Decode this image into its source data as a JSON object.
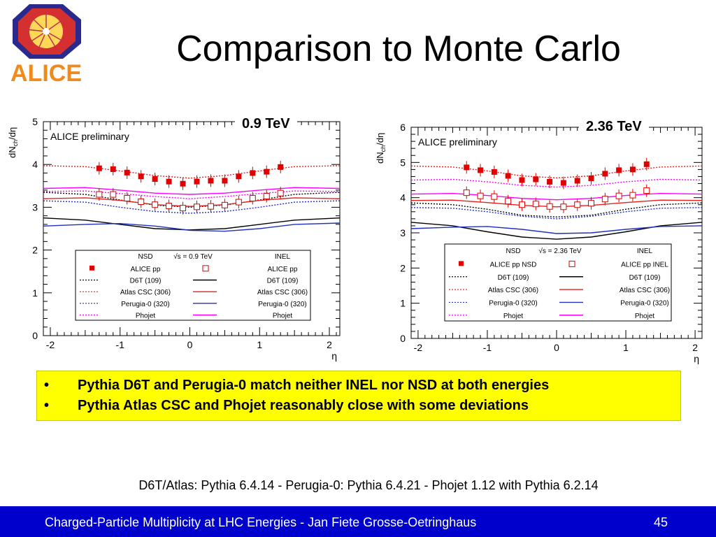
{
  "slide": {
    "title": "Comparison to Monte Carlo",
    "logo_text": "ALICE",
    "bullets": [
      "Pythia D6T and Perugia-0 match neither INEL nor NSD at both energies",
      "Pythia Atlas CSC and Phojet reasonably close with some deviations"
    ],
    "bullet_symbol": "•",
    "footnote": "D6T/Atlas: Pythia 6.4.14 - Perugia-0: Pythia 6.4.21 - Phojet 1.12 with Pythia 6.2.14",
    "footer": "Charged-Particle Multiplicity at LHC Energies - Jan Fiete Grosse-Oetringhaus",
    "page_number": "45",
    "colors": {
      "footer_bg": "#0000cc",
      "highlight": "#ffff00",
      "alice_red": "#ee0000",
      "logo_orange": "#f08a1c"
    }
  },
  "chart_data": [
    {
      "type": "scatter",
      "energy_label": "0.9 TeV",
      "annotation": "ALICE preliminary",
      "xlabel": "η",
      "ylabel": "dN_ch/dη",
      "xlim": [
        -2.1,
        2.15
      ],
      "ylim": [
        0,
        5
      ],
      "xticks": [
        -2,
        -1,
        0,
        1,
        2
      ],
      "yticks": [
        0,
        1,
        2,
        3,
        4,
        5
      ],
      "legend": {
        "header": [
          "NSD",
          "√s = 0.9 TeV",
          "INEL"
        ],
        "rows": [
          {
            "left": "ALICE pp",
            "right": "ALICE pp",
            "series": "data"
          },
          {
            "left": "D6T (109)",
            "right": "D6T (109)",
            "series": "D6T"
          },
          {
            "left": "Atlas CSC (306)",
            "right": "Atlas CSC (306)",
            "series": "Atlas"
          },
          {
            "left": "Perugia-0 (320)",
            "right": "Perugia-0 (320)",
            "series": "Perugia"
          },
          {
            "left": "Phojet",
            "right": "Phojet",
            "series": "Phojet"
          }
        ]
      },
      "data_nsd": {
        "x": [
          -1.3,
          -1.1,
          -0.9,
          -0.7,
          -0.5,
          -0.3,
          -0.1,
          0.1,
          0.3,
          0.5,
          0.7,
          0.9,
          1.1,
          1.3
        ],
        "y": [
          3.91,
          3.89,
          3.81,
          3.72,
          3.66,
          3.6,
          3.55,
          3.6,
          3.62,
          3.62,
          3.72,
          3.8,
          3.83,
          3.94
        ]
      },
      "data_inel": {
        "x": [
          -1.3,
          -1.1,
          -0.9,
          -0.7,
          -0.5,
          -0.3,
          -0.1,
          0.1,
          0.3,
          0.5,
          0.7,
          0.9,
          1.1,
          1.3
        ],
        "y": [
          3.3,
          3.3,
          3.21,
          3.13,
          3.06,
          3.03,
          2.98,
          3.01,
          3.02,
          3.05,
          3.12,
          3.21,
          3.26,
          3.33
        ]
      },
      "curves": {
        "x": [
          -2.1,
          -1.5,
          -1.0,
          -0.5,
          0,
          0.5,
          1.0,
          1.5,
          2.15
        ],
        "series": [
          {
            "id": "nsd_atlas",
            "color": "#e8201b",
            "dash": "dot",
            "y": [
              3.97,
              3.95,
              3.85,
              3.74,
              3.68,
              3.74,
              3.85,
              3.95,
              3.97
            ]
          },
          {
            "id": "inel_phojet",
            "color": "#ff00ff",
            "dash": "solid",
            "y": [
              3.44,
              3.46,
              3.4,
              3.33,
              3.3,
              3.33,
              3.4,
              3.46,
              3.44
            ]
          },
          {
            "id": "nsd_phojet",
            "color": "#ff00ff",
            "dash": "dot",
            "y": [
              3.37,
              3.38,
              3.32,
              3.25,
              3.2,
              3.25,
              3.32,
              3.38,
              3.37
            ]
          },
          {
            "id": "nsd_d6t",
            "color": "#000000",
            "dash": "dot",
            "y": [
              3.35,
              3.3,
              3.17,
              3.05,
              3.0,
              3.05,
              3.17,
              3.3,
              3.35
            ]
          },
          {
            "id": "inel_atlas",
            "color": "#e8201b",
            "dash": "solid",
            "y": [
              3.2,
              3.22,
              3.16,
              3.06,
              3.02,
              3.06,
              3.16,
              3.22,
              3.2
            ]
          },
          {
            "id": "nsd_perugia",
            "color": "#2030c0",
            "dash": "dot",
            "y": [
              3.15,
              3.12,
              3.0,
              2.9,
              2.86,
              2.9,
              3.0,
              3.12,
              3.15
            ]
          },
          {
            "id": "inel_d6t",
            "color": "#000000",
            "dash": "solid",
            "y": [
              2.75,
              2.7,
              2.6,
              2.5,
              2.47,
              2.5,
              2.6,
              2.7,
              2.75
            ]
          },
          {
            "id": "inel_perugia",
            "color": "#2030c0",
            "dash": "solid",
            "y": [
              2.56,
              2.6,
              2.62,
              2.56,
              2.46,
              2.44,
              2.5,
              2.6,
              2.63
            ]
          }
        ]
      }
    },
    {
      "type": "scatter",
      "energy_label": "2.36 TeV",
      "annotation": "ALICE preliminary",
      "xlabel": "η",
      "ylabel": "dN_ch/dη",
      "xlim": [
        -2.1,
        2.1
      ],
      "ylim": [
        0,
        6
      ],
      "xticks": [
        -2,
        -1,
        0,
        1,
        2
      ],
      "yticks": [
        0,
        1,
        2,
        3,
        4,
        5,
        6
      ],
      "legend": {
        "header": [
          "NSD",
          "√s = 2.36 TeV",
          "INEL"
        ],
        "rows": [
          {
            "left": "ALICE pp NSD",
            "right": "ALICE pp INEL",
            "series": "data"
          },
          {
            "left": "D6T (109)",
            "right": "D6T (109)",
            "series": "D6T"
          },
          {
            "left": "Atlas CSC (306)",
            "right": "Atlas CSC (306)",
            "series": "Atlas"
          },
          {
            "left": "Perugia-0 (320)",
            "right": "Perugia-0 (320)",
            "series": "Perugia"
          },
          {
            "left": "Phojet",
            "right": "Phojet",
            "series": "Phojet"
          }
        ]
      },
      "data_nsd": {
        "x": [
          -1.3,
          -1.1,
          -0.9,
          -0.7,
          -0.5,
          -0.3,
          -0.1,
          0.1,
          0.3,
          0.5,
          0.7,
          0.9,
          1.1,
          1.3
        ],
        "y": [
          4.86,
          4.78,
          4.73,
          4.62,
          4.5,
          4.52,
          4.45,
          4.42,
          4.48,
          4.55,
          4.68,
          4.78,
          4.8,
          4.95
        ]
      },
      "data_inel": {
        "x": [
          -1.3,
          -1.1,
          -0.9,
          -0.7,
          -0.5,
          -0.3,
          -0.1,
          0.1,
          0.3,
          0.5,
          0.7,
          0.9,
          1.1,
          1.3
        ],
        "y": [
          4.14,
          4.05,
          4.03,
          3.9,
          3.8,
          3.82,
          3.75,
          3.74,
          3.8,
          3.84,
          3.96,
          4.05,
          4.07,
          4.2
        ]
      },
      "curves": {
        "x": [
          -2.1,
          -1.5,
          -1.0,
          -0.5,
          0,
          0.5,
          1.0,
          1.5,
          2.1
        ],
        "series": [
          {
            "id": "nsd_atlas",
            "color": "#e8201b",
            "dash": "dot",
            "y": [
              4.9,
              4.87,
              4.76,
              4.62,
              4.56,
              4.62,
              4.76,
              4.87,
              4.9
            ]
          },
          {
            "id": "nsd_phojet",
            "color": "#ff00ff",
            "dash": "dot",
            "y": [
              4.5,
              4.52,
              4.45,
              4.35,
              4.3,
              4.35,
              4.45,
              4.52,
              4.5
            ]
          },
          {
            "id": "inel_phojet",
            "color": "#ff00ff",
            "dash": "solid",
            "y": [
              4.1,
              4.12,
              4.06,
              3.98,
              3.94,
              3.98,
              4.06,
              4.12,
              4.1
            ]
          },
          {
            "id": "inel_atlas",
            "color": "#e8201b",
            "dash": "solid",
            "y": [
              3.92,
              3.93,
              3.86,
              3.78,
              3.74,
              3.78,
              3.86,
              3.93,
              3.92
            ]
          },
          {
            "id": "nsd_d6t",
            "color": "#000000",
            "dash": "dot",
            "y": [
              3.85,
              3.8,
              3.67,
              3.5,
              3.45,
              3.5,
              3.67,
              3.8,
              3.85
            ]
          },
          {
            "id": "nsd_perugia",
            "color": "#2030c0",
            "dash": "dot",
            "y": [
              3.72,
              3.7,
              3.6,
              3.47,
              3.4,
              3.47,
              3.6,
              3.7,
              3.72
            ]
          },
          {
            "id": "inel_d6t",
            "color": "#000000",
            "dash": "solid",
            "y": [
              3.3,
              3.2,
              3.03,
              2.88,
              2.82,
              2.88,
              3.03,
              3.2,
              3.3
            ]
          },
          {
            "id": "inel_perugia",
            "color": "#2030c0",
            "dash": "solid",
            "y": [
              3.12,
              3.16,
              3.18,
              3.1,
              2.98,
              3.0,
              3.1,
              3.18,
              3.2
            ]
          }
        ]
      }
    }
  ]
}
